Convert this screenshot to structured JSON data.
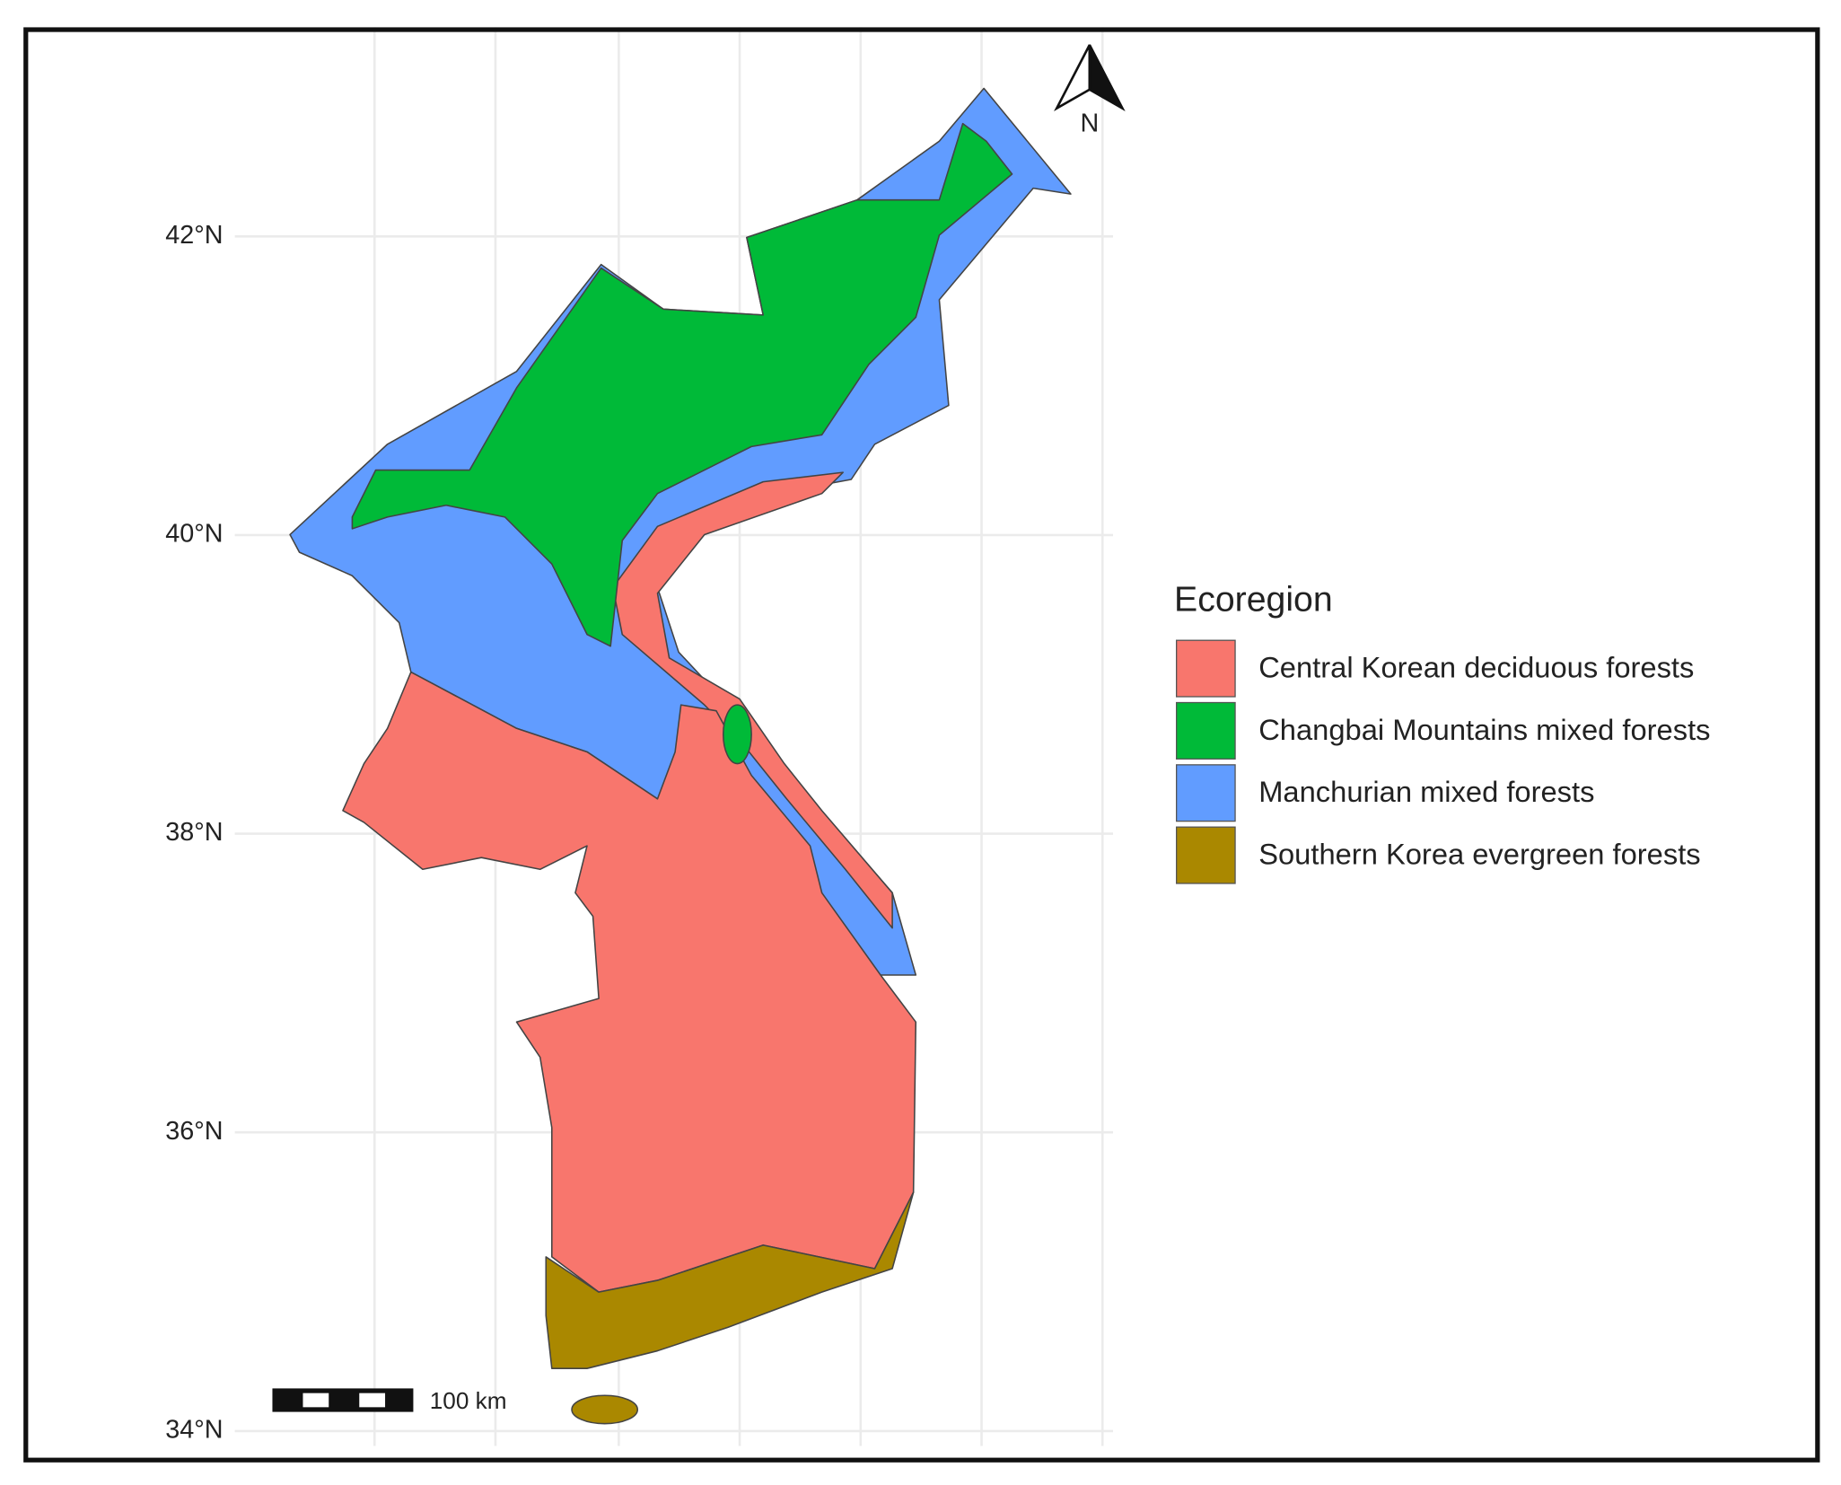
{
  "map": {
    "ylim": [
      33.9,
      43.4
    ],
    "yticks": [
      {
        "value": 34,
        "label": "34°N"
      },
      {
        "value": 36,
        "label": "36°N"
      },
      {
        "value": 38,
        "label": "38°N"
      },
      {
        "value": 40,
        "label": "40°N"
      },
      {
        "value": 42,
        "label": "42°N"
      }
    ],
    "legend": {
      "title": "Ecoregion",
      "items": [
        {
          "label": "Central Korean deciduous forests",
          "color": "#F8766D"
        },
        {
          "label": "Changbai Mountains mixed forests",
          "color": "#00BA38"
        },
        {
          "label": "Manchurian mixed forests",
          "color": "#619CFF"
        },
        {
          "label": "Southern Korea evergreen forests",
          "color": "#AA8800"
        }
      ]
    },
    "scale_bar": "100 km",
    "north_label": "N"
  }
}
